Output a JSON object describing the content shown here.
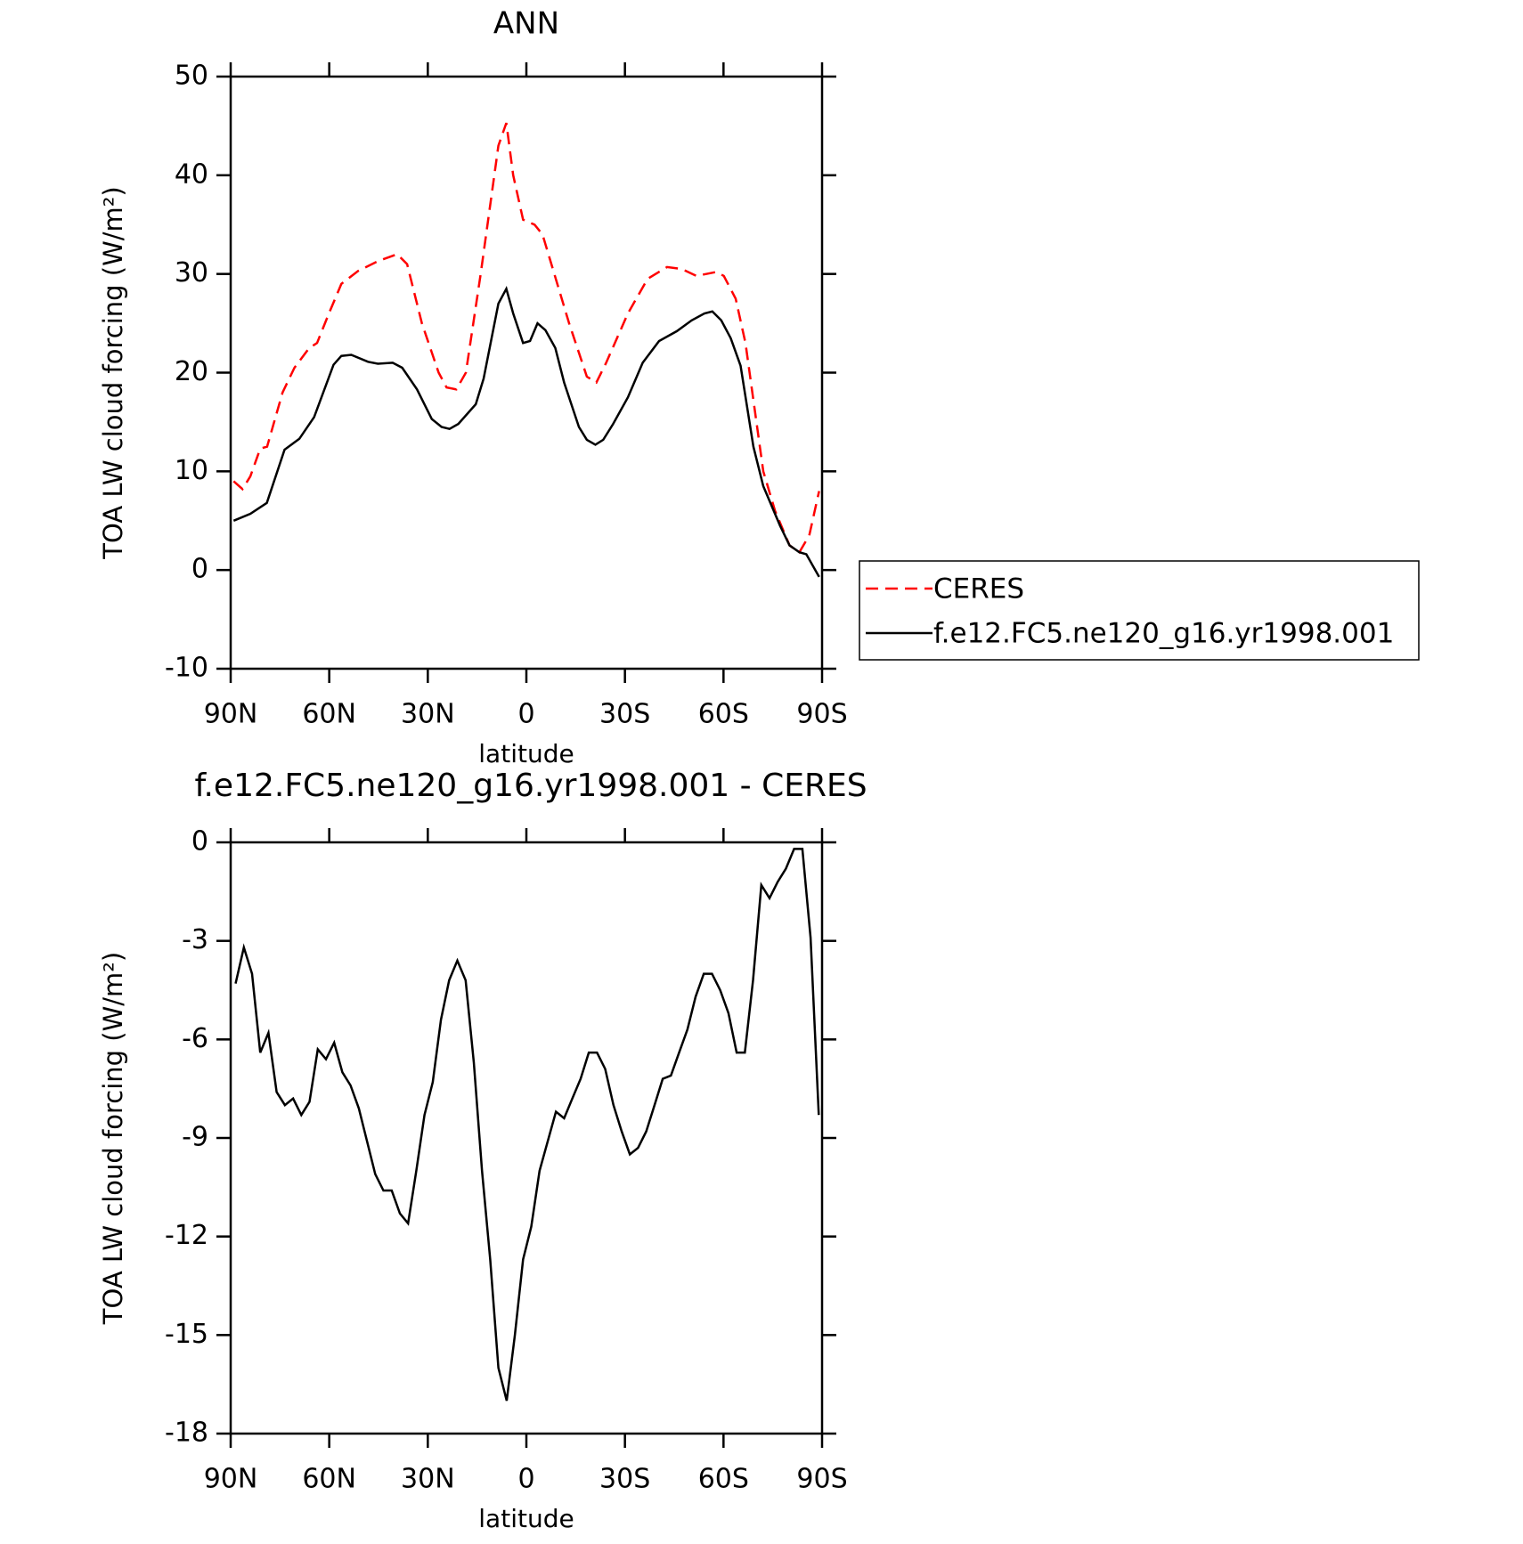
{
  "chart_data": [
    {
      "type": "line",
      "title": "ANN",
      "xlabel": "latitude",
      "ylabel": "TOA LW cloud forcing (W/m²)",
      "xlim": [
        90,
        -90
      ],
      "ylim": [
        -10,
        50
      ],
      "xticks": [
        {
          "value": 90,
          "label": "90N"
        },
        {
          "value": 60,
          "label": "60N"
        },
        {
          "value": 30,
          "label": "30N"
        },
        0,
        {
          "value": -30,
          "label": "30S"
        },
        {
          "value": -60,
          "label": "60S"
        },
        {
          "value": -90,
          "label": "90S"
        }
      ],
      "yticks": [
        -10,
        0,
        10,
        20,
        30,
        40,
        50
      ],
      "legend": "outside-right",
      "series": [
        {
          "name": "CERES",
          "color": "#ff0000",
          "dash": true,
          "x": [
            89.1,
            86.4,
            84,
            81,
            78.9,
            74.2,
            70.6,
            66.1,
            63.7,
            60.1,
            56.3,
            51.2,
            45.2,
            39.3,
            36.3,
            31.8,
            26.7,
            24.3,
            21.3,
            18.4,
            13.9,
            8.5,
            6.1,
            4,
            1,
            -2.5,
            -4.9,
            -8.5,
            -13,
            -18.4,
            -21.3,
            -24.3,
            -30.9,
            -36.9,
            -42.8,
            -47.3,
            -51.8,
            -57.8,
            -60.1,
            -63.7,
            -66.7,
            -72.1,
            -75.7,
            -80.1,
            -83.1,
            -86.1,
            -89.1
          ],
          "values": [
            9,
            8.2,
            9.5,
            12.3,
            12.5,
            18,
            20.5,
            22.5,
            23,
            26,
            29,
            30.3,
            31.3,
            32,
            31,
            25,
            20,
            18.5,
            18.3,
            20,
            30,
            43,
            45.3,
            40,
            35.5,
            35,
            34,
            30,
            25,
            19.6,
            19,
            21,
            26,
            29.5,
            30.7,
            30.5,
            29.8,
            30.2,
            29.8,
            27.5,
            23,
            10,
            6,
            2.5,
            1.8,
            3.5,
            8
          ]
        },
        {
          "name": "f.e12.FC5.ne120_g16.yr1998.001",
          "color": "#000000",
          "dash": false,
          "x": [
            89.1,
            84,
            79,
            73.6,
            69.1,
            64.6,
            58.7,
            56.3,
            53.3,
            48.2,
            45.2,
            40.7,
            37.8,
            33.3,
            28.8,
            25.8,
            23.4,
            20.7,
            15.4,
            13,
            8.5,
            6.1,
            4,
            1,
            -1.1,
            -3.4,
            -5.8,
            -8.8,
            -11.5,
            -16,
            -18.4,
            -21,
            -23.4,
            -26.4,
            -30.9,
            -35.4,
            -40.4,
            -45.8,
            -50.3,
            -54.2,
            -56.6,
            -59.3,
            -62.2,
            -65.2,
            -69.1,
            -72.1,
            -77.2,
            -80.1,
            -83.1,
            -85.2,
            -89.1
          ],
          "values": [
            5,
            5.7,
            6.8,
            12.2,
            13.3,
            15.5,
            20.8,
            21.7,
            21.8,
            21.1,
            20.9,
            21,
            20.5,
            18.3,
            15.3,
            14.5,
            14.3,
            14.8,
            16.8,
            19.4,
            27,
            28.5,
            26,
            23,
            23.2,
            25,
            24.3,
            22.5,
            19,
            14.5,
            13.2,
            12.7,
            13.2,
            14.8,
            17.5,
            21,
            23.2,
            24.2,
            25.3,
            26,
            26.2,
            25.3,
            23.5,
            20.7,
            12.5,
            8.5,
            4.5,
            2.5,
            1.8,
            1.6,
            -0.7
          ]
        }
      ]
    },
    {
      "type": "line",
      "title": "f.e12.FC5.ne120_g16.yr1998.001 - CERES",
      "xlabel": "latitude",
      "ylabel": "TOA LW cloud forcing (W/m²)",
      "xlim": [
        90,
        -90
      ],
      "ylim": [
        -18,
        0
      ],
      "xticks": [
        {
          "value": 90,
          "label": "90N"
        },
        {
          "value": 60,
          "label": "60N"
        },
        {
          "value": 30,
          "label": "30N"
        },
        0,
        {
          "value": -30,
          "label": "30S"
        },
        {
          "value": -60,
          "label": "60S"
        },
        {
          "value": -90,
          "label": "90S"
        }
      ],
      "yticks": [
        -18,
        -15,
        -12,
        -9,
        -6,
        -3,
        0
      ],
      "series": [
        {
          "color": "#000000",
          "dash": false,
          "x": [
            88.5,
            86,
            83.5,
            81,
            78.5,
            76,
            73.5,
            71,
            68.5,
            66,
            63.5,
            61,
            58.5,
            56,
            53.5,
            51,
            48.5,
            46,
            43.5,
            41,
            38.5,
            36,
            33.5,
            31,
            28.5,
            26,
            23.5,
            21,
            18.5,
            16,
            13.5,
            11,
            8.5,
            6,
            3.5,
            1,
            -1.5,
            -4,
            -6.5,
            -9,
            -11.5,
            -14,
            -16.5,
            -19,
            -21.5,
            -24,
            -26.5,
            -29,
            -31.5,
            -34,
            -36.5,
            -39,
            -41.5,
            -44,
            -46.5,
            -49,
            -51.5,
            -54,
            -56.5,
            -59,
            -61.5,
            -64,
            -66.5,
            -69,
            -71.5,
            -74,
            -76.5,
            -79,
            -81.5,
            -84,
            -86.5,
            -89
          ],
          "values": [
            -4.3,
            -3.2,
            -4.0,
            -6.4,
            -5.8,
            -7.6,
            -8.0,
            -7.8,
            -8.3,
            -7.9,
            -6.3,
            -6.6,
            -6.1,
            -7.0,
            -7.4,
            -8.1,
            -9.1,
            -10.1,
            -10.6,
            -10.6,
            -11.3,
            -11.6,
            -10.0,
            -8.3,
            -7.3,
            -5.4,
            -4.2,
            -3.6,
            -4.2,
            -6.7,
            -10.0,
            -12.7,
            -16.0,
            -17.0,
            -15.0,
            -12.7,
            -11.7,
            -10.0,
            -9.1,
            -8.2,
            -8.4,
            -7.8,
            -7.2,
            -6.4,
            -6.4,
            -6.9,
            -8.0,
            -8.8,
            -9.5,
            -9.3,
            -8.8,
            -8.0,
            -7.2,
            -7.1,
            -6.4,
            -5.7,
            -4.7,
            -4.0,
            -4.0,
            -4.5,
            -5.2,
            -6.4,
            -6.4,
            -4.2,
            -1.3,
            -1.7,
            -1.2,
            -0.8,
            -0.2,
            -0.2,
            -2.9,
            -8.3
          ]
        }
      ]
    }
  ]
}
